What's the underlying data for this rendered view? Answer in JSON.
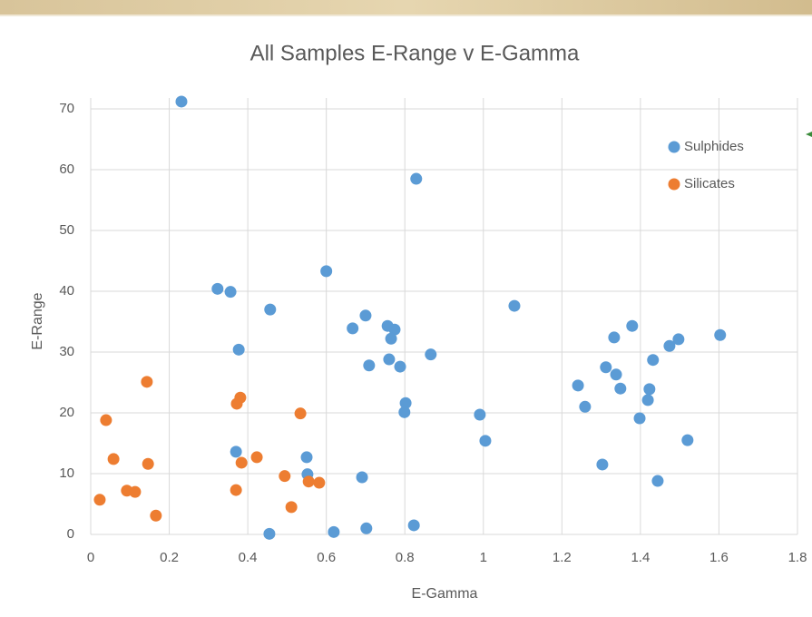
{
  "chart_data": {
    "type": "scatter",
    "title": "All Samples E-Range v E-Gamma",
    "x_label": "E-Gamma",
    "y_label": "E-Range",
    "xlim": [
      0,
      1.8
    ],
    "xticks": [
      0,
      0.2,
      0.4,
      0.6,
      0.8,
      1,
      1.2,
      1.4,
      1.6,
      1.8
    ],
    "ylim": [
      0,
      70
    ],
    "yticks": [
      0,
      10,
      20,
      30,
      40,
      50,
      60,
      70
    ],
    "grid": true,
    "legend": "upper right",
    "series": [
      {
        "name": "Sulphides",
        "color": "#5b9bd5",
        "x": [
          0.231,
          0.829,
          0.6,
          0.323,
          0.356,
          0.457,
          1.079,
          0.7,
          0.667,
          0.756,
          0.774,
          0.765,
          0.377,
          0.76,
          0.709,
          0.788,
          0.866,
          0.802,
          0.799,
          0.991,
          1.005,
          0.37,
          0.55,
          0.552,
          0.691,
          0.455,
          0.619,
          0.702,
          0.823,
          1.379,
          1.333,
          1.603,
          1.497,
          1.474,
          1.432,
          1.312,
          1.338,
          1.241,
          1.349,
          1.423,
          1.419,
          1.259,
          1.398,
          1.52,
          1.303,
          1.444
        ],
        "y": [
          71.2,
          58.5,
          43.3,
          40.4,
          39.9,
          37.0,
          37.6,
          36.0,
          33.9,
          34.3,
          33.7,
          32.2,
          30.4,
          28.8,
          27.8,
          27.6,
          29.6,
          21.6,
          20.1,
          19.7,
          15.4,
          13.6,
          12.7,
          9.9,
          9.4,
          0.1,
          0.4,
          1.0,
          1.5,
          34.3,
          32.4,
          32.8,
          32.1,
          31.0,
          28.7,
          27.5,
          26.3,
          24.5,
          24.0,
          23.9,
          22.1,
          21.0,
          19.1,
          15.5,
          11.5,
          8.8
        ]
      },
      {
        "name": "Silicates",
        "color": "#ed7d31",
        "x": [
          0.143,
          0.381,
          0.372,
          0.039,
          0.534,
          0.058,
          0.146,
          0.423,
          0.384,
          0.494,
          0.555,
          0.582,
          0.092,
          0.113,
          0.37,
          0.511,
          0.023,
          0.166
        ],
        "y": [
          25.1,
          22.5,
          21.5,
          18.8,
          19.9,
          12.4,
          11.6,
          12.7,
          11.8,
          9.6,
          8.7,
          8.5,
          7.2,
          7.0,
          7.3,
          4.5,
          5.7,
          3.1
        ]
      }
    ]
  }
}
